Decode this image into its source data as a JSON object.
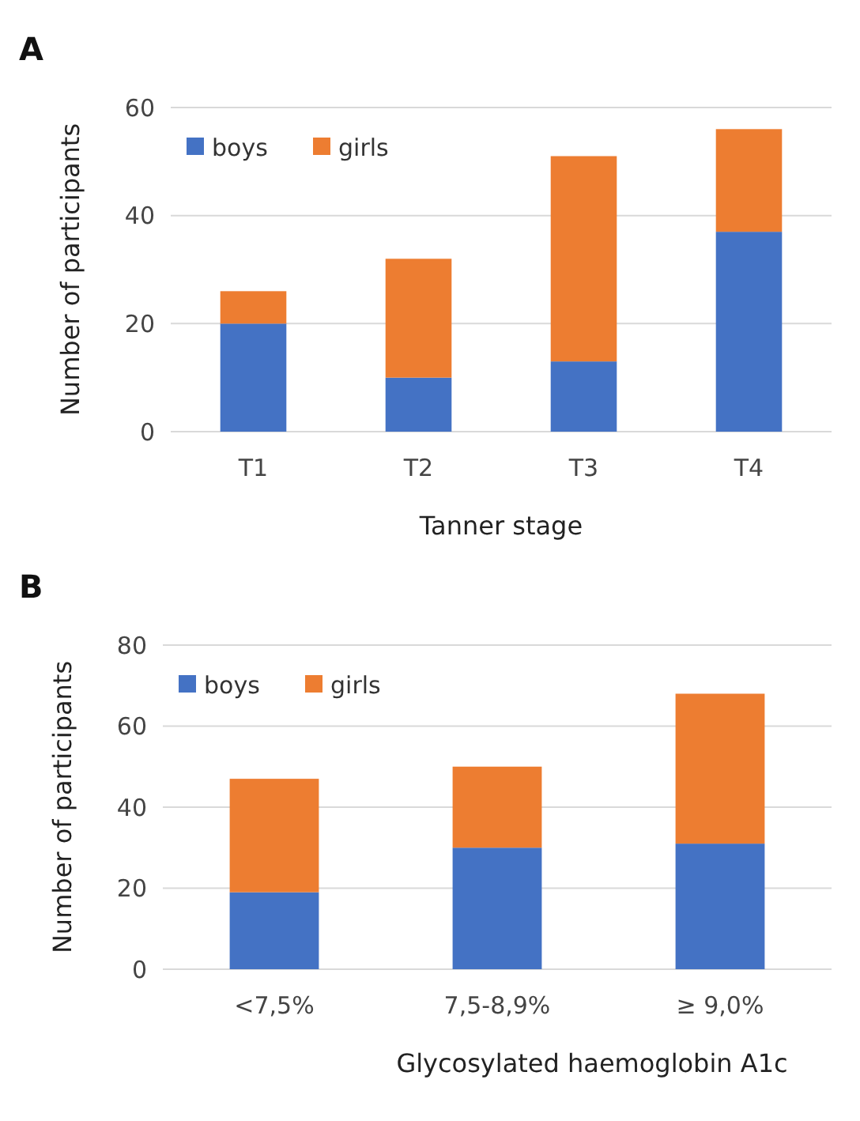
{
  "chart_data": [
    {
      "type": "bar",
      "title": "A",
      "xlabel": "Tanner stage",
      "ylabel": "Number of participants",
      "categories": [
        "T1",
        "T2",
        "T3",
        "T4"
      ],
      "stacked": true,
      "series": [
        {
          "name": "boys",
          "color": "#4472c4",
          "values": [
            20,
            10,
            13,
            37
          ]
        },
        {
          "name": "girls",
          "color": "#ed7d31",
          "values": [
            6,
            22,
            38,
            19
          ]
        }
      ],
      "ylim": [
        0,
        60
      ],
      "yticks": [
        0,
        20,
        40,
        60
      ],
      "grid": "y",
      "legend": "top left"
    },
    {
      "type": "bar",
      "title": "B",
      "xlabel": "Glycosylated haemoglobin A1c",
      "ylabel": "Number of participants",
      "categories": [
        "<7,5%",
        "7,5-8,9%",
        "≥ 9,0%"
      ],
      "stacked": true,
      "series": [
        {
          "name": "boys",
          "color": "#4472c4",
          "values": [
            19,
            30,
            31
          ]
        },
        {
          "name": "girls",
          "color": "#ed7d31",
          "values": [
            28,
            20,
            37
          ]
        }
      ],
      "ylim": [
        0,
        80
      ],
      "yticks": [
        0,
        20,
        40,
        60,
        80
      ],
      "grid": "y",
      "legend": "top left"
    }
  ]
}
